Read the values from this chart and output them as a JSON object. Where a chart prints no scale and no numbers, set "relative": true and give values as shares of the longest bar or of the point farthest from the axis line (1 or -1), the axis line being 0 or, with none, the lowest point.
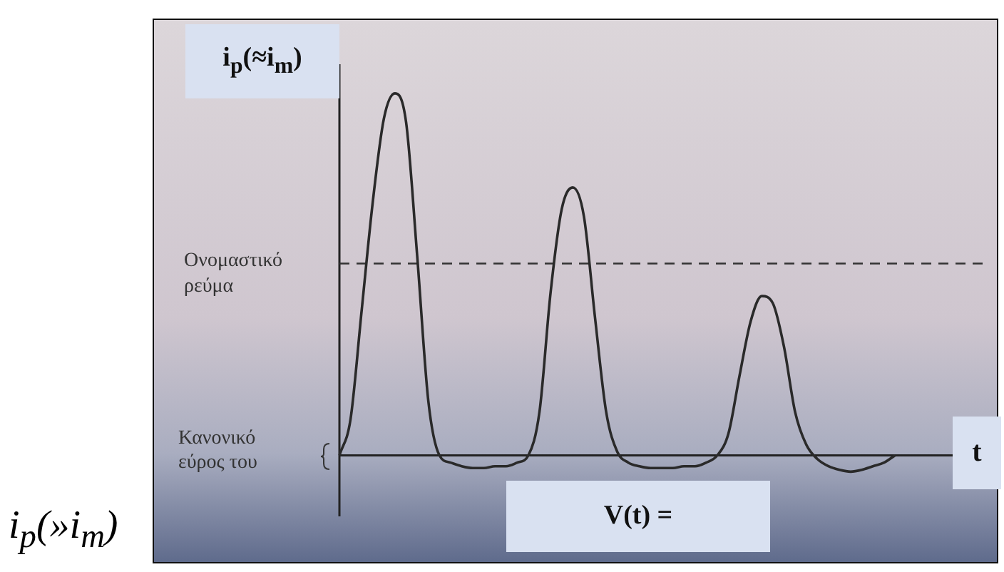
{
  "chart_data": {
    "type": "line",
    "relative": true,
    "ylabel": "i$_{p}$(≈i$_{m}$)",
    "xlabel": "t",
    "categories": [
      null,
      null,
      null,
      null,
      null,
      null,
      null,
      null,
      null,
      null,
      null,
      null,
      null,
      null,
      null,
      null,
      null,
      null,
      null,
      null,
      null,
      null,
      null,
      null,
      null,
      null,
      null,
      null,
      null,
      null,
      null,
      null,
      null,
      null,
      null,
      null,
      null,
      null,
      null,
      null,
      null,
      null,
      null,
      null,
      null,
      null,
      null,
      null,
      null,
      null,
      null,
      null,
      null,
      null,
      null,
      null,
      null,
      null,
      null
    ],
    "series": [
      {
        "color": "#2a2a2a",
        "values": [
          0.0,
          0.1,
          0.4,
          0.7,
          0.93,
          1.0,
          0.92,
          0.55,
          0.15,
          0.0,
          -0.02,
          -0.03,
          -0.035,
          -0.035,
          -0.03,
          -0.03,
          -0.02,
          0.0,
          0.12,
          0.45,
          0.68,
          0.74,
          0.66,
          0.38,
          0.12,
          0.01,
          -0.02,
          -0.03,
          -0.035,
          -0.035,
          -0.035,
          -0.03,
          -0.03,
          -0.02,
          0.0,
          0.06,
          0.22,
          0.37,
          0.44,
          0.42,
          0.3,
          0.12,
          0.03,
          -0.01,
          -0.03,
          -0.04,
          -0.045,
          -0.04,
          -0.03,
          -0.02,
          0.0,
          null,
          null,
          null,
          null,
          null,
          null,
          null,
          null
        ]
      }
    ],
    "ref_lines": [
      {
        "axis": "y",
        "value": 0.53,
        "label": "Ονομαστικό ρεύμα",
        "color": "#333333",
        "line_style": "dashed"
      }
    ],
    "annotations": [
      "Κανονικό εύρος του",
      "V(t) =",
      "i$_{p}$(»i$_{m}$)"
    ],
    "legend": false,
    "marker": "none",
    "line_style": "solid"
  }
}
